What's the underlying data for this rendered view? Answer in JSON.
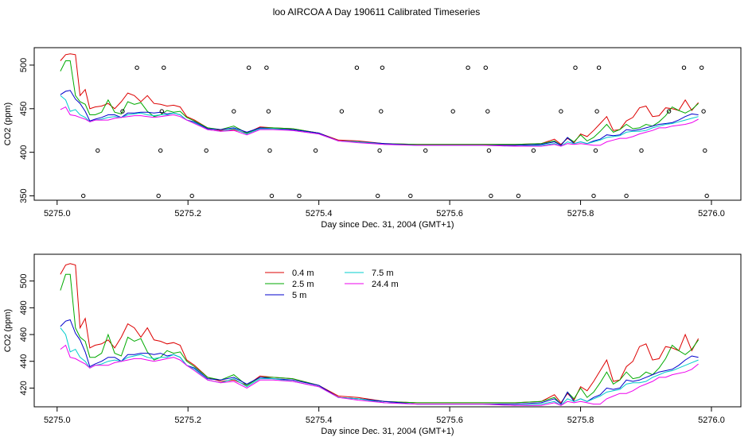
{
  "figure_title": "loo AIRCOA A  Day 190611  Calibrated Timeseries",
  "chart_data": [
    {
      "type": "line",
      "xlabel": "Day since Dec. 31, 2004 (GMT+1)",
      "ylabel": "CO2 (ppm)",
      "xlim": [
        5274.965,
        5276.045
      ],
      "ylim": [
        345,
        520
      ],
      "xticks": [
        5275.0,
        5275.2,
        5275.4,
        5275.6,
        5275.8,
        5276.0
      ],
      "xtick_labels": [
        "5275.0",
        "5275.2",
        "5275.4",
        "5275.6",
        "5275.8",
        "5276.0"
      ],
      "yticks": [
        350,
        400,
        450,
        500
      ],
      "ytick_labels": [
        "350",
        "400",
        "450",
        "500"
      ],
      "grid": false,
      "series": [
        {
          "key": "s04",
          "color": "#dd0000",
          "x": [
            5275.005,
            5275.013,
            5275.02,
            5275.028,
            5275.035,
            5275.043,
            5275.05,
            5275.058,
            5275.068,
            5275.078,
            5275.088,
            5275.098,
            5275.108,
            5275.118,
            5275.128,
            5275.138,
            5275.148,
            5275.158,
            5275.168,
            5275.178,
            5275.188,
            5275.198,
            5275.21,
            5275.23,
            5275.25,
            5275.27,
            5275.29,
            5275.31,
            5275.33,
            5275.36,
            5275.4,
            5275.43,
            5275.46,
            5275.5,
            5275.55,
            5275.6,
            5275.65,
            5275.7,
            5275.74,
            5275.76,
            5275.77,
            5275.78,
            5275.79,
            5275.8,
            5275.81,
            5275.82,
            5275.83,
            5275.84,
            5275.85,
            5275.86,
            5275.87,
            5275.88,
            5275.89,
            5275.9,
            5275.91,
            5275.92,
            5275.93,
            5275.94,
            5275.95,
            5275.96,
            5275.97,
            5275.98
          ],
          "y": [
            505,
            512,
            513,
            512,
            465,
            472,
            450,
            452,
            453,
            456,
            450,
            458,
            468,
            465,
            458,
            465,
            456,
            455,
            453,
            454,
            452,
            441,
            437,
            428,
            425,
            426,
            422,
            429,
            428,
            427,
            422,
            414,
            413,
            410,
            409,
            409,
            409,
            409,
            410,
            415,
            409,
            416,
            411,
            421,
            418,
            425,
            433,
            441,
            425,
            426,
            436,
            440,
            451,
            453,
            441,
            442,
            451,
            450,
            448,
            460,
            448,
            457
          ]
        },
        {
          "key": "s25",
          "color": "#00aa00",
          "x": [
            5275.005,
            5275.013,
            5275.02,
            5275.028,
            5275.035,
            5275.043,
            5275.05,
            5275.058,
            5275.068,
            5275.078,
            5275.088,
            5275.098,
            5275.108,
            5275.118,
            5275.128,
            5275.138,
            5275.148,
            5275.158,
            5275.168,
            5275.178,
            5275.188,
            5275.198,
            5275.21,
            5275.23,
            5275.25,
            5275.27,
            5275.29,
            5275.31,
            5275.33,
            5275.36,
            5275.4,
            5275.43,
            5275.46,
            5275.5,
            5275.55,
            5275.6,
            5275.65,
            5275.7,
            5275.74,
            5275.76,
            5275.77,
            5275.78,
            5275.79,
            5275.8,
            5275.81,
            5275.82,
            5275.83,
            5275.84,
            5275.85,
            5275.86,
            5275.87,
            5275.88,
            5275.89,
            5275.9,
            5275.91,
            5275.92,
            5275.93,
            5275.94,
            5275.95,
            5275.96,
            5275.97,
            5275.98
          ],
          "y": [
            493,
            505,
            505,
            465,
            458,
            455,
            443,
            443,
            446,
            460,
            446,
            444,
            458,
            455,
            457,
            447,
            441,
            443,
            448,
            446,
            447,
            440,
            436,
            428,
            426,
            430,
            422,
            428,
            428,
            427,
            422,
            413,
            412,
            410,
            409,
            409,
            409,
            409,
            410,
            413,
            408,
            417,
            412,
            420,
            413,
            417,
            424,
            432,
            423,
            426,
            432,
            427,
            428,
            432,
            430,
            435,
            442,
            452,
            448,
            445,
            449,
            456
          ]
        },
        {
          "key": "s5",
          "color": "#0000cc",
          "x": [
            5275.005,
            5275.013,
            5275.02,
            5275.028,
            5275.035,
            5275.043,
            5275.05,
            5275.058,
            5275.068,
            5275.078,
            5275.088,
            5275.098,
            5275.108,
            5275.118,
            5275.128,
            5275.138,
            5275.148,
            5275.158,
            5275.168,
            5275.178,
            5275.188,
            5275.198,
            5275.21,
            5275.23,
            5275.25,
            5275.27,
            5275.29,
            5275.31,
            5275.33,
            5275.36,
            5275.4,
            5275.43,
            5275.46,
            5275.5,
            5275.55,
            5275.6,
            5275.65,
            5275.7,
            5275.74,
            5275.76,
            5275.77,
            5275.78,
            5275.79,
            5275.8,
            5275.81,
            5275.82,
            5275.83,
            5275.84,
            5275.85,
            5275.86,
            5275.87,
            5275.88,
            5275.89,
            5275.9,
            5275.91,
            5275.92,
            5275.93,
            5275.94,
            5275.95,
            5275.96,
            5275.97,
            5275.98
          ],
          "y": [
            466,
            470,
            471,
            461,
            456,
            447,
            436,
            438,
            440,
            443,
            443,
            440,
            445,
            445,
            446,
            446,
            445,
            446,
            444,
            445,
            443,
            437,
            435,
            427,
            426,
            428,
            423,
            428,
            427,
            426,
            422,
            413,
            412,
            410,
            408,
            408,
            408,
            408,
            409,
            412,
            408,
            417,
            410,
            412,
            410,
            413,
            415,
            420,
            419,
            420,
            426,
            425,
            426,
            428,
            430,
            432,
            433,
            434,
            437,
            441,
            444,
            443
          ]
        },
        {
          "key": "s75",
          "color": "#00cccc",
          "x": [
            5275.005,
            5275.013,
            5275.02,
            5275.028,
            5275.035,
            5275.043,
            5275.05,
            5275.058,
            5275.068,
            5275.078,
            5275.088,
            5275.098,
            5275.108,
            5275.118,
            5275.128,
            5275.138,
            5275.148,
            5275.158,
            5275.168,
            5275.178,
            5275.188,
            5275.198,
            5275.21,
            5275.23,
            5275.25,
            5275.27,
            5275.29,
            5275.31,
            5275.33,
            5275.36,
            5275.4,
            5275.43,
            5275.46,
            5275.5,
            5275.55,
            5275.6,
            5275.65,
            5275.7,
            5275.74,
            5275.76,
            5275.77,
            5275.78,
            5275.79,
            5275.8,
            5275.81,
            5275.82,
            5275.83,
            5275.84,
            5275.85,
            5275.86,
            5275.87,
            5275.88,
            5275.89,
            5275.9,
            5275.91,
            5275.92,
            5275.93,
            5275.94,
            5275.95,
            5275.96,
            5275.97,
            5275.98
          ],
          "y": [
            465,
            460,
            447,
            449,
            443,
            440,
            435,
            437,
            438,
            440,
            441,
            440,
            443,
            444,
            445,
            443,
            442,
            443,
            443,
            445,
            443,
            437,
            434,
            426,
            424,
            427,
            421,
            427,
            427,
            425,
            421,
            413,
            412,
            409,
            408,
            408,
            408,
            407,
            408,
            410,
            407,
            412,
            410,
            412,
            410,
            412,
            414,
            417,
            418,
            419,
            423,
            424,
            424,
            425,
            428,
            430,
            432,
            433,
            435,
            437,
            439,
            441
          ]
        },
        {
          "key": "s244",
          "color": "#ee00ee",
          "x": [
            5275.005,
            5275.013,
            5275.02,
            5275.028,
            5275.035,
            5275.043,
            5275.05,
            5275.058,
            5275.068,
            5275.078,
            5275.088,
            5275.098,
            5275.108,
            5275.118,
            5275.128,
            5275.138,
            5275.148,
            5275.158,
            5275.168,
            5275.178,
            5275.188,
            5275.198,
            5275.21,
            5275.23,
            5275.25,
            5275.27,
            5275.29,
            5275.31,
            5275.33,
            5275.36,
            5275.4,
            5275.43,
            5275.46,
            5275.5,
            5275.55,
            5275.6,
            5275.65,
            5275.7,
            5275.74,
            5275.76,
            5275.77,
            5275.78,
            5275.79,
            5275.8,
            5275.81,
            5275.82,
            5275.83,
            5275.84,
            5275.85,
            5275.86,
            5275.87,
            5275.88,
            5275.89,
            5275.9,
            5275.91,
            5275.92,
            5275.93,
            5275.94,
            5275.95,
            5275.96,
            5275.97,
            5275.98
          ],
          "y": [
            449,
            452,
            443,
            442,
            440,
            438,
            435,
            437,
            437,
            437,
            439,
            440,
            441,
            442,
            442,
            441,
            440,
            441,
            442,
            443,
            441,
            437,
            433,
            426,
            424,
            425,
            420,
            426,
            426,
            425,
            421,
            413,
            411,
            409,
            408,
            408,
            408,
            407,
            407,
            409,
            407,
            410,
            409,
            410,
            409,
            408,
            408,
            412,
            414,
            416,
            416,
            418,
            421,
            423,
            425,
            428,
            428,
            430,
            431,
            432,
            434,
            438
          ]
        }
      ],
      "points": {
        "x": [
          5275.04,
          5275.062,
          5275.1,
          5275.122,
          5275.155,
          5275.158,
          5275.16,
          5275.163,
          5275.206,
          5275.228,
          5275.27,
          5275.293,
          5275.32,
          5275.323,
          5275.325,
          5275.328,
          5275.37,
          5275.395,
          5275.435,
          5275.458,
          5275.49,
          5275.493,
          5275.495,
          5275.497,
          5275.54,
          5275.563,
          5275.605,
          5275.628,
          5275.655,
          5275.658,
          5275.66,
          5275.663,
          5275.705,
          5275.728,
          5275.77,
          5275.792,
          5275.82,
          5275.823,
          5275.825,
          5275.828,
          5275.87,
          5275.893,
          5275.935,
          5275.958,
          5275.985,
          5275.988,
          5275.99,
          5275.993
        ],
        "y": [
          350,
          402,
          447,
          497,
          350,
          402,
          447,
          497,
          350,
          402,
          447,
          497,
          497,
          447,
          402,
          350,
          350,
          402,
          447,
          497,
          350,
          402,
          447,
          497,
          350,
          402,
          447,
          497,
          497,
          447,
          402,
          350,
          350,
          402,
          447,
          497,
          350,
          402,
          447,
          497,
          350,
          402,
          447,
          497,
          497,
          447,
          402,
          350
        ]
      }
    },
    {
      "type": "line",
      "xlabel": "Day since Dec. 31, 2004 (GMT+1)",
      "ylabel": "CO2 (ppm)",
      "xlim": [
        5274.965,
        5276.045
      ],
      "ylim": [
        406,
        520
      ],
      "xticks": [
        5275.0,
        5275.2,
        5275.4,
        5275.6,
        5275.8,
        5276.0
      ],
      "xtick_labels": [
        "5275.0",
        "5275.2",
        "5275.4",
        "5275.6",
        "5275.8",
        "5276.0"
      ],
      "yticks": [
        420,
        440,
        460,
        480,
        500
      ],
      "ytick_labels": [
        "420",
        "440",
        "460",
        "480",
        "500"
      ],
      "grid": false,
      "legend_placement": "top-left",
      "legend": [
        {
          "name": "0.4 m",
          "color": "#dd0000"
        },
        {
          "name": "7.5 m",
          "color": "#00cccc"
        },
        {
          "name": "2.5 m",
          "color": "#00aa00"
        },
        {
          "name": "24.4 m",
          "color": "#ee00ee"
        },
        {
          "name": "5 m",
          "color": "#0000cc"
        }
      ]
    }
  ]
}
